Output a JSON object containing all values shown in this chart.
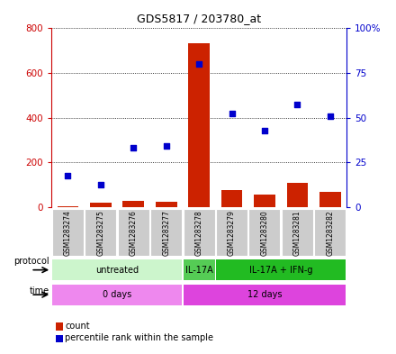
{
  "title": "GDS5817 / 203780_at",
  "samples": [
    "GSM1283274",
    "GSM1283275",
    "GSM1283276",
    "GSM1283277",
    "GSM1283278",
    "GSM1283279",
    "GSM1283280",
    "GSM1283281",
    "GSM1283282"
  ],
  "counts": [
    5,
    20,
    28,
    25,
    735,
    75,
    55,
    110,
    68
  ],
  "percentile_ranks_right": [
    17.5,
    12.5,
    33,
    34,
    80,
    52.5,
    43,
    57.5,
    51
  ],
  "ylim_left": [
    0,
    800
  ],
  "ylim_right": [
    0,
    100
  ],
  "yticks_left": [
    0,
    200,
    400,
    600,
    800
  ],
  "yticks_right": [
    0,
    25,
    50,
    75,
    100
  ],
  "ytick_labels_right": [
    "0",
    "25",
    "50",
    "75",
    "100%"
  ],
  "protocol_groups": [
    {
      "label": "untreated",
      "start": 0,
      "end": 4,
      "color": "#ccf5cc"
    },
    {
      "label": "IL-17A",
      "start": 4,
      "end": 5,
      "color": "#55cc55"
    },
    {
      "label": "IL-17A + IFN-g",
      "start": 5,
      "end": 9,
      "color": "#22bb22"
    }
  ],
  "time_groups": [
    {
      "label": "0 days",
      "start": 0,
      "end": 4,
      "color": "#ee88ee"
    },
    {
      "label": "12 days",
      "start": 4,
      "end": 9,
      "color": "#dd44dd"
    }
  ],
  "bar_color": "#cc2200",
  "scatter_color": "#0000cc",
  "left_tick_color": "#cc0000",
  "right_tick_color": "#0000cc",
  "grid_color": "#000000",
  "bg_color": "#ffffff",
  "sample_box_color": "#cccccc",
  "sample_box_edge": "#ffffff"
}
